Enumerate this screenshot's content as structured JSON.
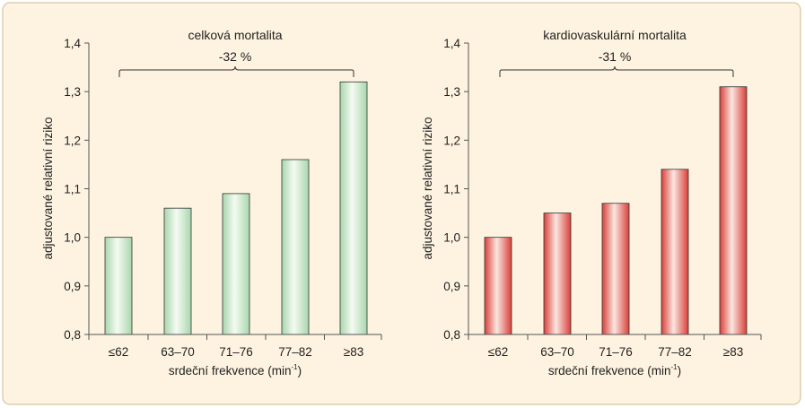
{
  "colors": {
    "panel_bg": "#fdf3e0",
    "panel_border": "#ddd0b0",
    "green_bar_edge": "#3a3a3a",
    "green_bar_side": "#a9d6ad",
    "green_bar_mid": "#f4fbf2",
    "red_bar_side": "#d9403a",
    "red_bar_mid": "#fbe6e0"
  },
  "chart_data": [
    {
      "type": "bar",
      "title": "celková mortalita",
      "annotation": "-32 %",
      "xlabel": "srdeční frekvence (min-1)",
      "xlabel_main": "srdeční frekvence (min",
      "xlabel_sup": "-1",
      "xlabel_close": ")",
      "ylabel": "adjustované relativní riziko",
      "categories": [
        "≤62",
        "63–70",
        "71–76",
        "77–82",
        "≥83"
      ],
      "values": [
        1.0,
        1.06,
        1.09,
        1.16,
        1.32
      ],
      "ylim": [
        0.8,
        1.4
      ],
      "yticks": [
        "0,8",
        "0,9",
        "1,0",
        "1,1",
        "1,2",
        "1,3",
        "1,4"
      ],
      "color_scheme": "green",
      "grid": false
    },
    {
      "type": "bar",
      "title": "kardiovaskulární mortalita",
      "annotation": "-31 %",
      "xlabel": "srdeční frekvence (min-1)",
      "xlabel_main": "srdeční frekvence (min",
      "xlabel_sup": "-1",
      "xlabel_close": ")",
      "ylabel": "adjustované relativní riziko",
      "categories": [
        "≤62",
        "63–70",
        "71–76",
        "77–82",
        "≥83"
      ],
      "values": [
        1.0,
        1.05,
        1.07,
        1.14,
        1.31
      ],
      "ylim": [
        0.8,
        1.4
      ],
      "yticks": [
        "0,8",
        "0,9",
        "1,0",
        "1,1",
        "1,2",
        "1,3",
        "1,4"
      ],
      "color_scheme": "red",
      "grid": false
    }
  ]
}
